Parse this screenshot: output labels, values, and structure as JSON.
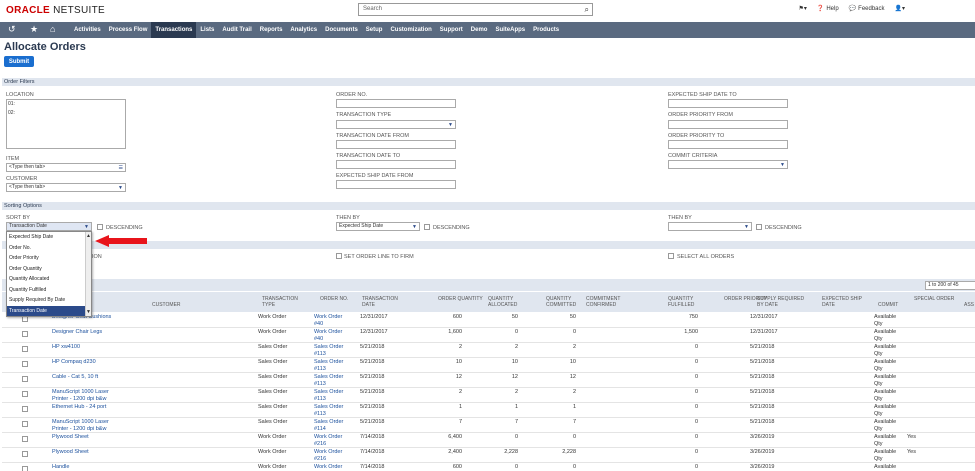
{
  "header": {
    "logo_oracle": "ORACLE",
    "logo_netsuite": "NETSUITE",
    "search_placeholder": "Search",
    "help": "Help",
    "feedback": "Feedback"
  },
  "nav": [
    "Activities",
    "Process Flow",
    "Transactions",
    "Lists",
    "Audit Trail",
    "Reports",
    "Analytics",
    "Documents",
    "Setup",
    "Customization",
    "Support",
    "Demo",
    "SuiteApps",
    "Products"
  ],
  "page": {
    "title": "Allocate Orders",
    "submit": "Submit"
  },
  "order_filters": {
    "section": "Order Filters",
    "location_label": "LOCATION",
    "location_items": [
      "01:",
      "02:"
    ],
    "item_label": "ITEM",
    "item_value": "<Type then tab>",
    "customer_label": "CUSTOMER",
    "customer_value": "<Type then tab>",
    "order_no_label": "ORDER NO.",
    "transaction_type_label": "TRANSACTION TYPE",
    "trans_date_from_label": "TRANSACTION DATE FROM",
    "trans_date_to_label": "TRANSACTION DATE TO",
    "exp_ship_from_label": "EXPECTED SHIP DATE FROM",
    "exp_ship_to_label": "EXPECTED SHIP DATE TO",
    "priority_from_label": "ORDER PRIORITY FROM",
    "priority_to_label": "ORDER PRIORITY TO",
    "commit_criteria_label": "COMMIT CRITERIA"
  },
  "sorting": {
    "section": "Sorting Options",
    "sort_by_label": "SORT BY",
    "sort_by_value": "Transaction Date",
    "descending": "DESCENDING",
    "then_by_label": "THEN BY",
    "then_by_value": "Expected Ship Date",
    "then_by2_label": "THEN BY"
  },
  "dropdown_options": [
    "Expected Ship Date",
    "Order No.",
    "Order Priority",
    "Order Quantity",
    "Quantity Allocated",
    "Quantity Fulfilled",
    "Supply Required By Date",
    "Transaction Date"
  ],
  "options": {
    "partial_label": "ION",
    "set_order_line": "SET ORDER LINE TO FIRM",
    "select_all": "SELECT ALL ORDERS"
  },
  "pager": "1 to 200 of 45",
  "columns": [
    "CUSTOMER",
    "TRANSACTION TYPE",
    "ORDER NO.",
    "TRANSACTION DATE",
    "ORDER QUANTITY",
    "QUANTITY ALLOCATED",
    "QUANTITY COMMITTED",
    "COMMITMENT CONFIRMED",
    "QUANTITY FULFILLED",
    "ORDER PRIORITY",
    "SUPPLY REQUIRED BY DATE",
    "EXPECTED SHIP DATE",
    "COMMIT",
    "SPECIAL ORDER",
    "ASS"
  ],
  "rows": [
    {
      "item": "Designer Seat Cushions",
      "type": "Work Order",
      "order": "Work Order #40",
      "date": "12/31/2017",
      "oq": "600",
      "qa": "50",
      "qc": "50",
      "qf": "750",
      "supply": "12/31/2017",
      "commit": "Available Qty",
      "special": ""
    },
    {
      "item": "Designer Chair Legs",
      "type": "Work Order",
      "order": "Work Order #40",
      "date": "12/31/2017",
      "oq": "1,600",
      "qa": "0",
      "qc": "0",
      "qf": "1,500",
      "supply": "12/31/2017",
      "commit": "Available Qty",
      "special": ""
    },
    {
      "item": "HP xw4100",
      "type": "Sales Order",
      "order": "Sales Order #113",
      "date": "5/21/2018",
      "oq": "2",
      "qa": "2",
      "qc": "2",
      "qf": "0",
      "supply": "5/21/2018",
      "commit": "Available Qty",
      "special": ""
    },
    {
      "item": "HP Compaq d230",
      "type": "Sales Order",
      "order": "Sales Order #113",
      "date": "5/21/2018",
      "oq": "10",
      "qa": "10",
      "qc": "10",
      "qf": "0",
      "supply": "5/21/2018",
      "commit": "Available Qty",
      "special": ""
    },
    {
      "item": "Cable - Cat 5, 10 ft",
      "type": "Sales Order",
      "order": "Sales Order #113",
      "date": "5/21/2018",
      "oq": "12",
      "qa": "12",
      "qc": "12",
      "qf": "0",
      "supply": "5/21/2018",
      "commit": "Available Qty",
      "special": ""
    },
    {
      "item": "ManuScript 1000 Laser Printer - 1200 dpi b&w",
      "type": "Sales Order",
      "order": "Sales Order #113",
      "date": "5/21/2018",
      "oq": "2",
      "qa": "2",
      "qc": "2",
      "qf": "0",
      "supply": "5/21/2018",
      "commit": "Available Qty",
      "special": ""
    },
    {
      "item": "Ethernet Hub - 24 port",
      "type": "Sales Order",
      "order": "Sales Order #113",
      "date": "5/21/2018",
      "oq": "1",
      "qa": "1",
      "qc": "1",
      "qf": "0",
      "supply": "5/21/2018",
      "commit": "Available Qty",
      "special": ""
    },
    {
      "item": "ManuScript 1000 Laser Printer - 1200 dpi b&w",
      "type": "Sales Order",
      "order": "Sales Order #114",
      "date": "5/21/2018",
      "oq": "7",
      "qa": "7",
      "qc": "7",
      "qf": "0",
      "supply": "5/21/2018",
      "commit": "Available Qty",
      "special": ""
    },
    {
      "item": "Plywood Sheet",
      "type": "Work Order",
      "order": "Work Order #216",
      "date": "7/14/2018",
      "oq": "6,400",
      "qa": "0",
      "qc": "0",
      "qf": "0",
      "supply": "3/26/2019",
      "commit": "Available Qty",
      "special": "Yes"
    },
    {
      "item": "Plywood Sheet",
      "type": "Work Order",
      "order": "Work Order #216",
      "date": "7/14/2018",
      "oq": "2,400",
      "qa": "2,228",
      "qc": "2,228",
      "qf": "0",
      "supply": "3/26/2019",
      "commit": "Available Qty",
      "special": "Yes"
    },
    {
      "item": "Handle",
      "type": "Work Order",
      "order": "Work Order",
      "date": "7/14/2018",
      "oq": "600",
      "qa": "0",
      "qc": "0",
      "qf": "0",
      "supply": "3/26/2019",
      "commit": "Available",
      "special": ""
    }
  ]
}
